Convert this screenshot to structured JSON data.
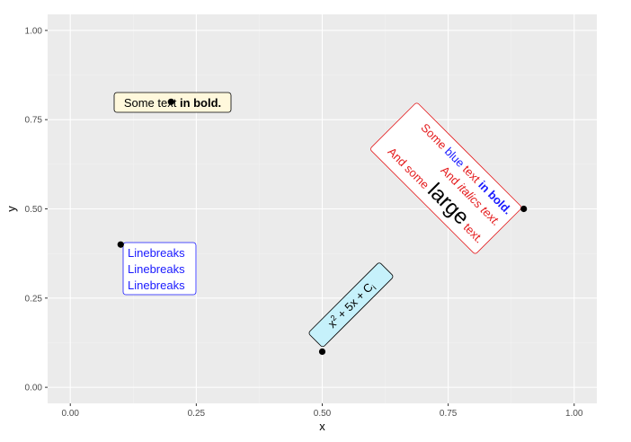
{
  "chart_data": {
    "type": "scatter",
    "xlabel": "x",
    "ylabel": "y",
    "xlim": [
      -0.045,
      1.045
    ],
    "ylim": [
      -0.045,
      1.045
    ],
    "x_ticks": [
      0,
      0.25,
      0.5,
      0.75,
      1
    ],
    "y_ticks": [
      0,
      0.25,
      0.5,
      0.75,
      1
    ],
    "x_tick_labels": [
      "0.00",
      "0.25",
      "0.50",
      "0.75",
      "1.00"
    ],
    "y_tick_labels": [
      "0.00",
      "0.25",
      "0.50",
      "0.75",
      "1.00"
    ],
    "grid": true,
    "points": [
      {
        "x": 0.2,
        "y": 0.8
      },
      {
        "x": 0.1,
        "y": 0.4
      },
      {
        "x": 0.5,
        "y": 0.1
      },
      {
        "x": 0.9,
        "y": 0.5
      }
    ],
    "annotations": [
      {
        "x": 0.2,
        "y": 0.8,
        "parts": [
          "Some text ",
          "in bold."
        ],
        "fill": "#fff8dc",
        "border": "#000000"
      },
      {
        "x": 0.1,
        "y": 0.4,
        "lines": [
          "Linebreaks",
          "Linebreaks",
          "Linebreaks"
        ],
        "color": "#1a1aff",
        "fill": "#ffffff",
        "border": "#1a1aff"
      },
      {
        "x": 0.5,
        "y": 0.1,
        "parts": [
          "x",
          "2",
          " + 5x + C",
          "i"
        ],
        "rotation": 45,
        "fill": "#c6f1fb",
        "border": "#000000"
      },
      {
        "x": 0.9,
        "y": 0.5,
        "rotation": -45,
        "fill": "#ffffff",
        "border": "#e41a1c",
        "line1": [
          "Some ",
          "blue",
          " text ",
          "in bold."
        ],
        "line2": [
          "And ",
          "italics text."
        ],
        "line3": [
          "And some ",
          "large",
          " text."
        ]
      }
    ],
    "colors": {
      "panel": "#ebebeb",
      "grid_major": "#ffffff",
      "grid_minor": "#f2f2f2",
      "point": "#000000",
      "red": "#e41a1c",
      "blue": "#1a1aff"
    }
  }
}
